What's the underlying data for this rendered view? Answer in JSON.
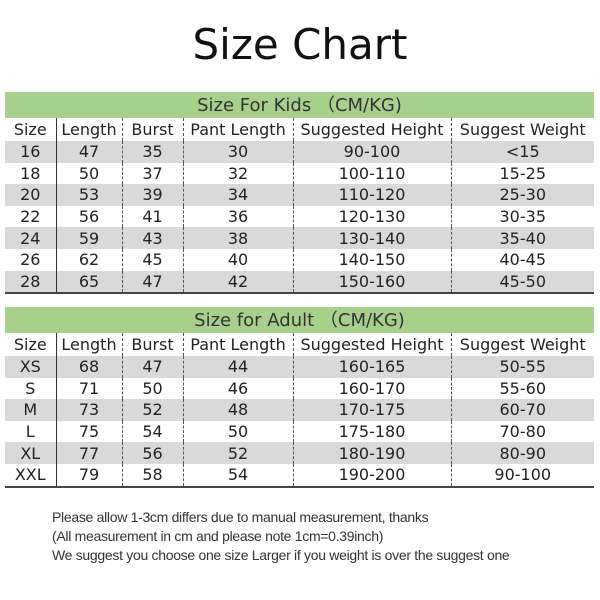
{
  "title": "Size Chart",
  "colors": {
    "band": "#a8d08d",
    "stripe": "#d9d9d9"
  },
  "columns": [
    "Size",
    "Length",
    "Burst",
    "Pant Length",
    "Suggested Height",
    "Suggest Weight"
  ],
  "kids": {
    "heading": "Size For Kids （CM/KG)",
    "rows": [
      [
        "16",
        "47",
        "35",
        "30",
        "90-100",
        "<15"
      ],
      [
        "18",
        "50",
        "37",
        "32",
        "100-110",
        "15-25"
      ],
      [
        "20",
        "53",
        "39",
        "34",
        "110-120",
        "25-30"
      ],
      [
        "22",
        "56",
        "41",
        "36",
        "120-130",
        "30-35"
      ],
      [
        "24",
        "59",
        "43",
        "38",
        "130-140",
        "35-40"
      ],
      [
        "26",
        "62",
        "45",
        "40",
        "140-150",
        "40-45"
      ],
      [
        "28",
        "65",
        "47",
        "42",
        "150-160",
        "45-50"
      ]
    ]
  },
  "adult": {
    "heading": "Size for Adult （CM/KG)",
    "rows": [
      [
        "XS",
        "68",
        "47",
        "44",
        "160-165",
        "50-55"
      ],
      [
        "S",
        "71",
        "50",
        "46",
        "160-170",
        "55-60"
      ],
      [
        "M",
        "73",
        "52",
        "48",
        "170-175",
        "60-70"
      ],
      [
        "L",
        "75",
        "54",
        "50",
        "175-180",
        "70-80"
      ],
      [
        "XL",
        "77",
        "56",
        "52",
        "180-190",
        "80-90"
      ],
      [
        "XXL",
        "79",
        "58",
        "54",
        "190-200",
        "90-100"
      ]
    ]
  },
  "notes": [
    "Please allow 1-3cm differs due to manual measurement, thanks",
    "(All measurement in cm and please note 1cm=0.39inch)",
    "We suggest you choose one size Larger if you weight is over the suggest one"
  ]
}
